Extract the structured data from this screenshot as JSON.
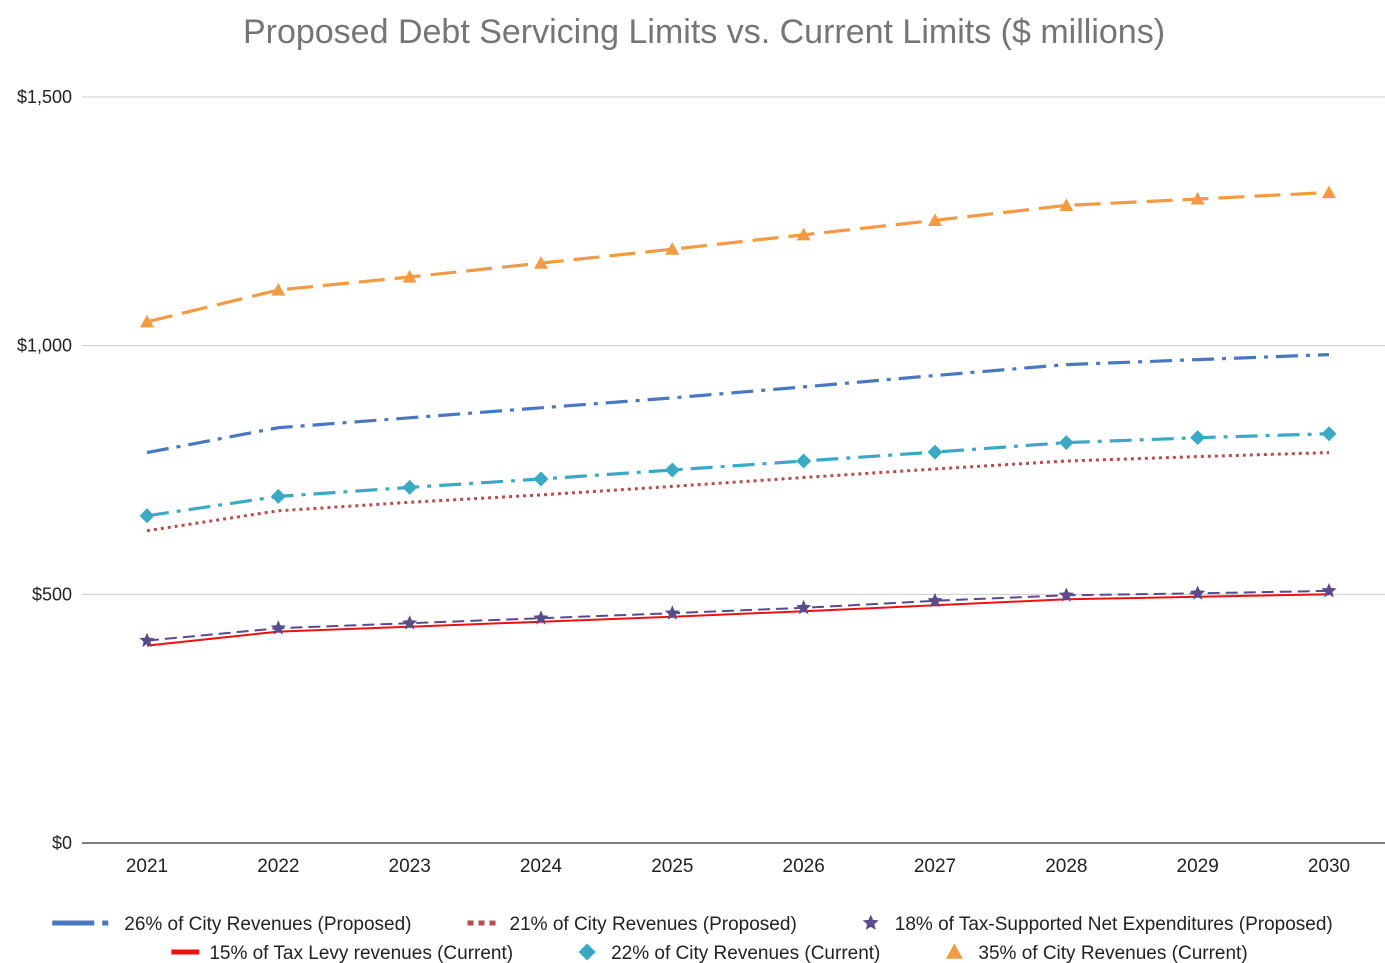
{
  "chart_data": {
    "type": "line",
    "title": "Proposed Debt Servicing Limits vs. Current Limits ($ millions)",
    "xlabel": "",
    "ylabel": "",
    "x": [
      "2021",
      "2022",
      "2023",
      "2024",
      "2025",
      "2026",
      "2027",
      "2028",
      "2029",
      "2030"
    ],
    "ylim": [
      0,
      1500
    ],
    "yticks": [
      0,
      500,
      1000,
      1500
    ],
    "ytick_labels": [
      "$0",
      "$500",
      "$1,000",
      "$1,500"
    ],
    "grid": true,
    "legend_position": "bottom",
    "series": [
      {
        "name": "26% of City Revenues (Proposed)",
        "values": [
          785,
          835,
          855,
          875,
          895,
          917,
          940,
          962,
          972,
          982
        ],
        "color": "#4a78c0",
        "line_style": "dash-dot",
        "marker": "none"
      },
      {
        "name": "21% of City Revenues (Proposed)",
        "values": [
          628,
          668,
          685,
          700,
          717,
          735,
          752,
          768,
          777,
          785
        ],
        "color": "#b84d4d",
        "line_style": "dotted",
        "marker": "none"
      },
      {
        "name": "18% of Tax-Supported Net Expenditures (Proposed)",
        "values": [
          407,
          432,
          442,
          452,
          462,
          473,
          487,
          498,
          502,
          507
        ],
        "color": "#5b4b8a",
        "line_style": "dashed",
        "marker": "star"
      },
      {
        "name": "15% of Tax Levy revenues (Current)",
        "values": [
          397,
          425,
          435,
          445,
          455,
          466,
          478,
          490,
          495,
          500
        ],
        "color": "#ee1111",
        "line_style": "solid",
        "marker": "none"
      },
      {
        "name": "22% of City Revenues (Current)",
        "values": [
          658,
          697,
          715,
          732,
          750,
          768,
          786,
          805,
          815,
          823
        ],
        "color": "#3ba9c4",
        "line_style": "dash-dot",
        "marker": "diamond"
      },
      {
        "name": "35% of City Revenues (Current)",
        "values": [
          1048,
          1112,
          1138,
          1166,
          1194,
          1223,
          1252,
          1282,
          1295,
          1308
        ],
        "color": "#f39a45",
        "line_style": "long-dash",
        "marker": "triangle"
      }
    ]
  }
}
